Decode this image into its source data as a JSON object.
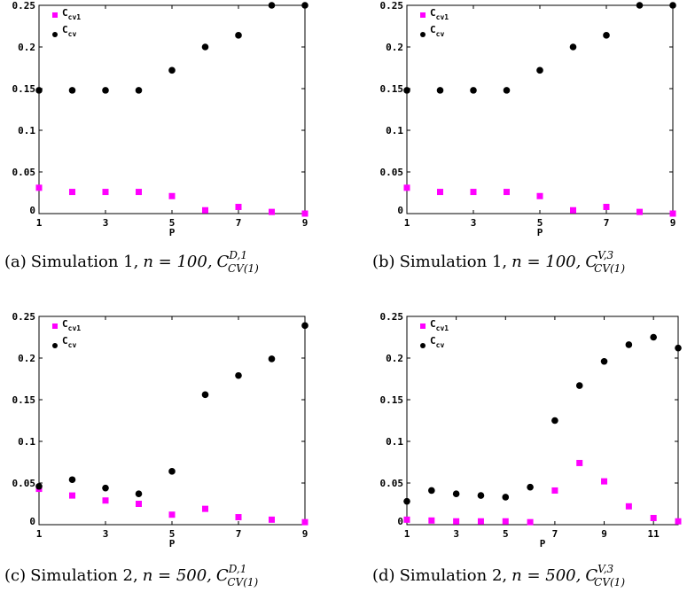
{
  "legend": {
    "cv1": {
      "main": "C",
      "sub": "cv1"
    },
    "cv": {
      "main": "C",
      "sub": "cv"
    }
  },
  "colors": {
    "cv1": "#ff00ff",
    "cv": "#000000"
  },
  "xlabel": "P",
  "captions": [
    {
      "label": "(a)",
      "text": "Simulation 1,",
      "n_expr": "n = 100,",
      "sym": "C",
      "sup": "D,1",
      "sub": "CV(1)"
    },
    {
      "label": "(b)",
      "text": "Simulation 1,",
      "n_expr": "n = 100,",
      "sym": "C",
      "sup": "V,3",
      "sub": "CV(1)"
    },
    {
      "label": "(c)",
      "text": "Simulation 2,",
      "n_expr": "n = 500,",
      "sym": "C",
      "sup": "D,1",
      "sub": "CV(1)"
    },
    {
      "label": "(d)",
      "text": "Simulation 2,",
      "n_expr": "n = 500,",
      "sym": "C",
      "sup": "V,3",
      "sub": "CV(1)"
    }
  ],
  "chart_data": [
    {
      "type": "scatter",
      "xlabel": "P",
      "xlim": [
        1,
        9
      ],
      "ylim": [
        0,
        0.25
      ],
      "xticks": [
        "1",
        "3",
        "5",
        "7",
        "9"
      ],
      "yticks": [
        "0",
        "0.05",
        "0.1",
        "0.15",
        "0.2",
        "0.25"
      ],
      "legend": "top-left",
      "series": [
        {
          "name": "Ccv1",
          "x": [
            1,
            2,
            3,
            4,
            5,
            6,
            7,
            8,
            9
          ],
          "y": [
            0.031,
            0.026,
            0.026,
            0.026,
            0.021,
            0.004,
            0.008,
            0.002,
            0.0
          ]
        },
        {
          "name": "Ccv",
          "x": [
            1,
            2,
            3,
            4,
            5,
            6,
            7,
            8,
            9
          ],
          "y": [
            0.148,
            0.148,
            0.148,
            0.148,
            0.172,
            0.2,
            0.214,
            0.25,
            0.25
          ]
        }
      ]
    },
    {
      "type": "scatter",
      "xlabel": "P",
      "xlim": [
        1,
        9
      ],
      "ylim": [
        0,
        0.25
      ],
      "xticks": [
        "1",
        "3",
        "5",
        "7",
        "9"
      ],
      "yticks": [
        "0",
        "0.05",
        "0.1",
        "0.15",
        "0.2",
        "0.25"
      ],
      "legend": "top-left",
      "series": [
        {
          "name": "Ccv1",
          "x": [
            1,
            2,
            3,
            4,
            5,
            6,
            7,
            8,
            9
          ],
          "y": [
            0.031,
            0.026,
            0.026,
            0.026,
            0.021,
            0.004,
            0.008,
            0.002,
            0.0
          ]
        },
        {
          "name": "Ccv",
          "x": [
            1,
            2,
            3,
            4,
            5,
            6,
            7,
            8,
            9
          ],
          "y": [
            0.148,
            0.148,
            0.148,
            0.148,
            0.172,
            0.2,
            0.214,
            0.25,
            0.25
          ]
        }
      ]
    },
    {
      "type": "scatter",
      "xlabel": "P",
      "xlim": [
        1,
        9
      ],
      "ylim": [
        0,
        0.25
      ],
      "xticks": [
        "1",
        "3",
        "5",
        "7",
        "9"
      ],
      "yticks": [
        "0",
        "0.05",
        "0.1",
        "0.15",
        "0.2",
        "0.25"
      ],
      "legend": "top-left",
      "series": [
        {
          "name": "Ccv1",
          "x": [
            1,
            2,
            3,
            4,
            5,
            6,
            7,
            8,
            9
          ],
          "y": [
            0.043,
            0.035,
            0.029,
            0.025,
            0.012,
            0.019,
            0.009,
            0.006,
            0.003
          ]
        },
        {
          "name": "Ccv",
          "x": [
            1,
            2,
            3,
            4,
            5,
            6,
            7,
            8,
            9
          ],
          "y": [
            0.046,
            0.054,
            0.044,
            0.037,
            0.064,
            0.156,
            0.179,
            0.199,
            0.239
          ]
        }
      ]
    },
    {
      "type": "scatter",
      "xlabel": "P",
      "xlim": [
        1,
        12
      ],
      "ylim": [
        0,
        0.25
      ],
      "xticks": [
        "1",
        "3",
        "5",
        "7",
        "9",
        "11"
      ],
      "yticks": [
        "0",
        "0.05",
        "0.1",
        "0.15",
        "0.2",
        "0.25"
      ],
      "legend": "top-left",
      "series": [
        {
          "name": "Ccv1",
          "x": [
            1,
            2,
            3,
            4,
            5,
            6,
            7,
            8,
            9,
            10,
            11,
            12
          ],
          "y": [
            0.006,
            0.005,
            0.004,
            0.004,
            0.004,
            0.003,
            0.041,
            0.074,
            0.052,
            0.022,
            0.008,
            0.004
          ]
        },
        {
          "name": "Ccv",
          "x": [
            1,
            2,
            3,
            4,
            5,
            6,
            7,
            8,
            9,
            10,
            11,
            12
          ],
          "y": [
            0.028,
            0.041,
            0.037,
            0.035,
            0.033,
            0.045,
            0.125,
            0.167,
            0.196,
            0.216,
            0.225,
            0.212
          ]
        }
      ]
    }
  ]
}
